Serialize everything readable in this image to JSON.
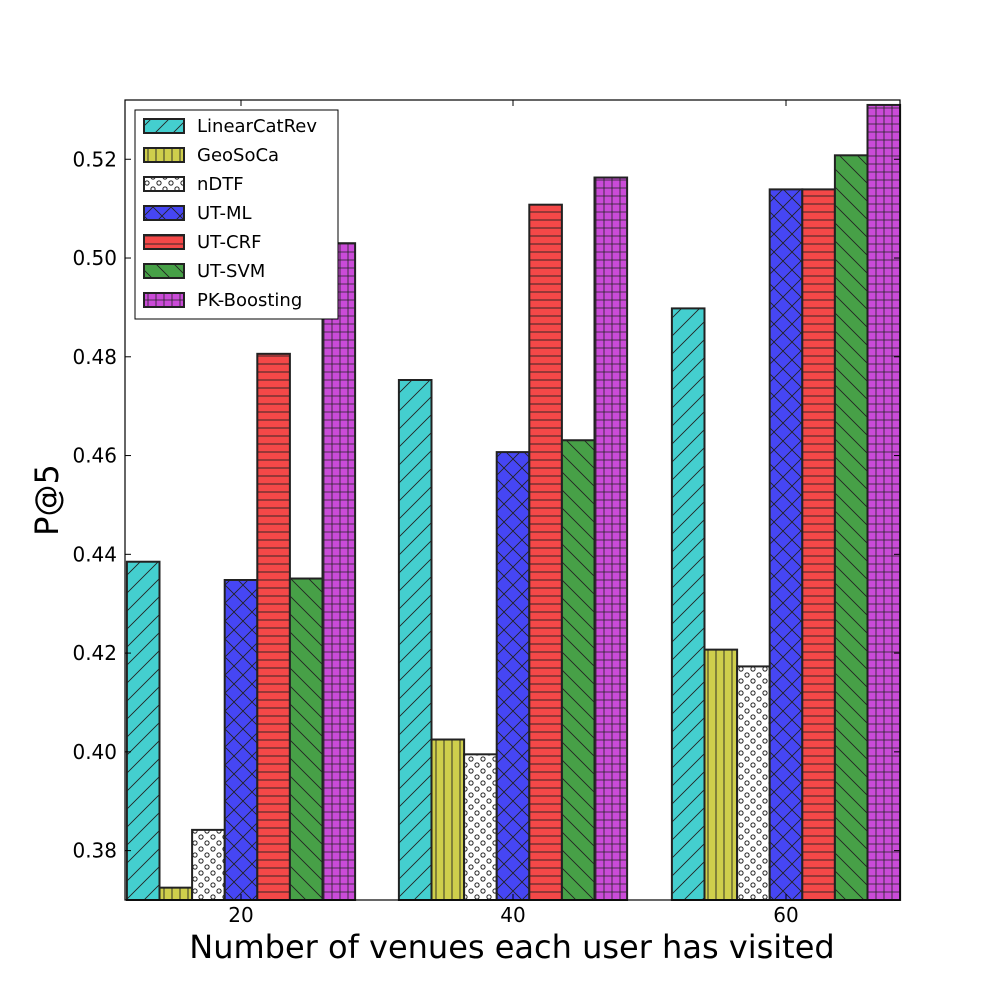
{
  "chart_data": {
    "type": "bar",
    "title": "",
    "xlabel": "Number of venues each user has visited",
    "ylabel": "P@5",
    "categories": [
      "20",
      "40",
      "60"
    ],
    "ylim": [
      0.37,
      0.532
    ],
    "yticks": [
      0.38,
      0.4,
      0.42,
      0.44,
      0.46,
      0.48,
      0.5,
      0.52
    ],
    "ytick_labels": [
      "0.38",
      "0.40",
      "0.42",
      "0.44",
      "0.46",
      "0.48",
      "0.50",
      "0.52"
    ],
    "legend_position": "top-left",
    "grid": false,
    "series": [
      {
        "name": "LinearCatRev",
        "values": [
          0.4385,
          0.4753,
          0.4898
        ],
        "color": "#44cfcf",
        "hatch": "diag-forward"
      },
      {
        "name": "GeoSoCa",
        "values": [
          0.3725,
          0.4025,
          0.4207
        ],
        "color": "#cfcf4c",
        "hatch": "vertical"
      },
      {
        "name": "nDTF",
        "values": [
          0.3842,
          0.3995,
          0.4173
        ],
        "color": "#ffffff",
        "hatch": "dots"
      },
      {
        "name": "UT-ML",
        "values": [
          0.4348,
          0.4607,
          0.5139
        ],
        "color": "#4646f4",
        "hatch": "crosshatch-diag"
      },
      {
        "name": "UT-CRF",
        "values": [
          0.4806,
          0.5108,
          0.5139
        ],
        "color": "#f44848",
        "hatch": "horizontal"
      },
      {
        "name": "UT-SVM",
        "values": [
          0.4351,
          0.4631,
          0.5208
        ],
        "color": "#47a047",
        "hatch": "diag-back"
      },
      {
        "name": "PK-Boosting",
        "values": [
          0.503,
          0.5163,
          0.531
        ],
        "color": "#ca4bd8",
        "hatch": "grid"
      }
    ]
  }
}
